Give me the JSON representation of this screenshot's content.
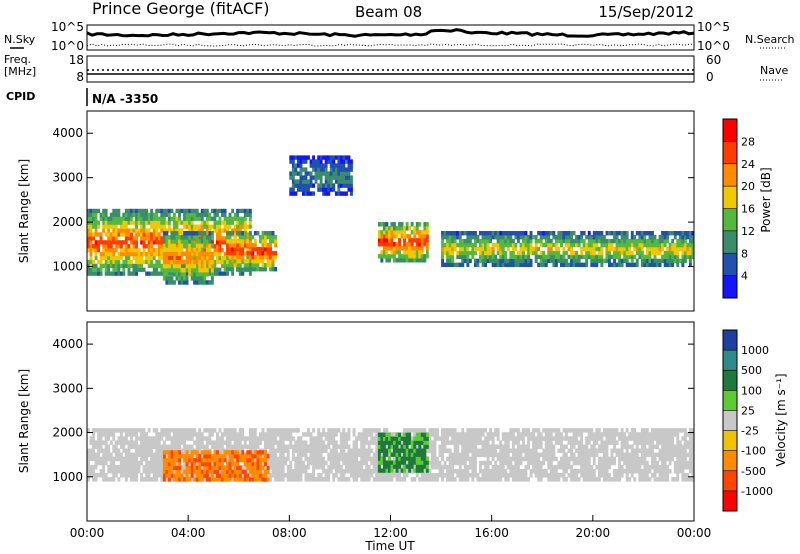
{
  "header": {
    "station": "Prince George (fitACF)",
    "beam": "Beam 08",
    "date": "15/Sep/2012"
  },
  "status_panels": {
    "nsky": {
      "label": "N.Sky",
      "ticks": [
        "10^5",
        "10^0"
      ]
    },
    "nsearch": {
      "label": "N.Search",
      "ticks": [
        "10^5",
        "10^0"
      ]
    },
    "freq": {
      "label_line1": "Freq.",
      "label_line2": "[MHz]",
      "ticks": [
        "18",
        "8"
      ]
    },
    "nave": {
      "label": "Nave",
      "ticks": [
        "60",
        "0"
      ]
    },
    "cpid": {
      "label": "CPID",
      "value": "N/A -3350"
    }
  },
  "colors": {
    "power_scale": [
      "#1414ff",
      "#2050b0",
      "#3a8c6a",
      "#54b840",
      "#f0c800",
      "#ff8c00",
      "#ff3c00",
      "#ff0000"
    ],
    "velocity_scale": [
      "#1f3fa0",
      "#2e8b8b",
      "#1e7a3c",
      "#5ccc32",
      "#c8c8c8",
      "#f2c200",
      "#ff8c00",
      "#ff4500",
      "#ff0000"
    ],
    "ground_scatter": "#c8c8c8"
  },
  "chart_data": [
    {
      "type": "heatmap",
      "name": "power",
      "ylabel": "Slant Range [km]",
      "yticks": [
        "1000",
        "2000",
        "3000",
        "4000"
      ],
      "ylim": [
        0,
        4500
      ],
      "xlim": [
        "00:00",
        "24:00"
      ],
      "colorbar": {
        "label": "Power [dB]",
        "ticks": [
          "4",
          "8",
          "12",
          "16",
          "20",
          "24",
          "28"
        ],
        "range": [
          0,
          32
        ]
      },
      "echo_regions": [
        {
          "t": [
            0.0,
            6.5
          ],
          "range_km": [
            800,
            2300
          ],
          "level": 26
        },
        {
          "t": [
            3.0,
            5.0
          ],
          "range_km": [
            600,
            1800
          ],
          "level": 24
        },
        {
          "t": [
            5.5,
            7.5
          ],
          "range_km": [
            900,
            1800
          ],
          "level": 28
        },
        {
          "t": [
            8.0,
            10.5
          ],
          "range_km": [
            2600,
            3500
          ],
          "level": 10
        },
        {
          "t": [
            11.5,
            13.5
          ],
          "range_km": [
            1100,
            2000
          ],
          "level": 28
        },
        {
          "t": [
            14.0,
            24.0
          ],
          "range_km": [
            1000,
            1800
          ],
          "level": 18
        }
      ]
    },
    {
      "type": "heatmap",
      "name": "velocity",
      "ylabel": "Slant Range [km]",
      "yticks": [
        "1000",
        "2000",
        "3000",
        "4000"
      ],
      "ylim": [
        0,
        4500
      ],
      "xlim": [
        "00:00",
        "24:00"
      ],
      "xticks": [
        "00:00",
        "04:00",
        "08:00",
        "12:00",
        "16:00",
        "20:00",
        "00:00"
      ],
      "xlabel": "Time UT",
      "colorbar": {
        "label": "Velocity [m s⁻¹]",
        "ticks": [
          "1000",
          "500",
          "100",
          "25",
          "-25",
          "-100",
          "-500",
          "-1000"
        ]
      },
      "echo_regions": [
        {
          "t": [
            0.0,
            24.0
          ],
          "range_km": [
            900,
            2100
          ],
          "velocity": 0,
          "ground_scatter": true
        },
        {
          "t": [
            3.0,
            5.5
          ],
          "range_km": [
            900,
            1600
          ],
          "velocity": -300
        },
        {
          "t": [
            5.5,
            7.2
          ],
          "range_km": [
            900,
            1600
          ],
          "velocity": -300
        },
        {
          "t": [
            11.5,
            13.5
          ],
          "range_km": [
            1100,
            2000
          ],
          "velocity": 200
        }
      ]
    }
  ]
}
